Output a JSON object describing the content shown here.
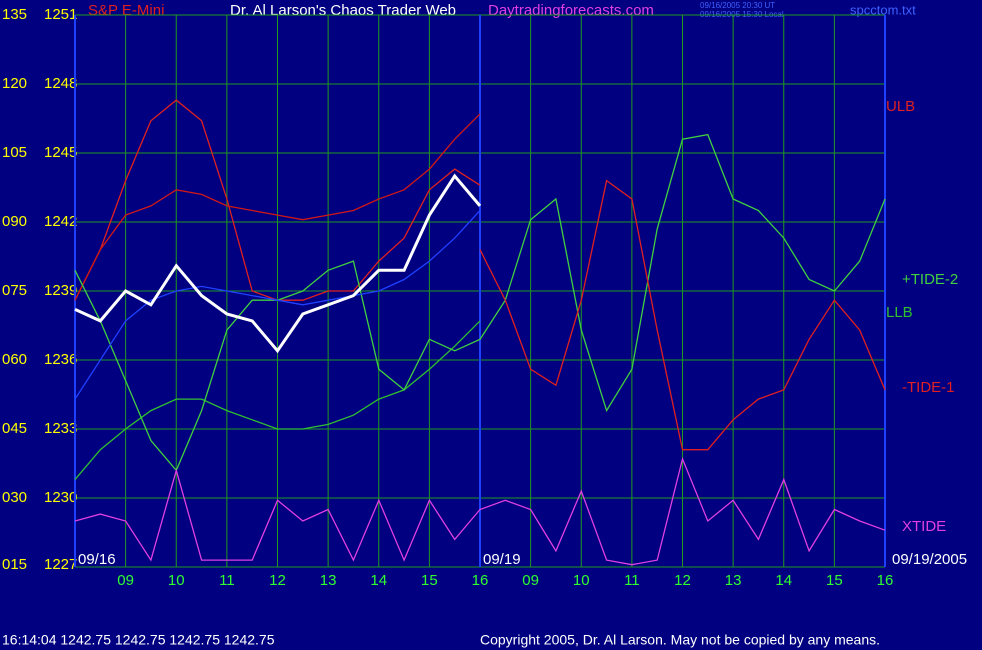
{
  "chart_data": {
    "type": "line",
    "title": "Dr. Al Larson's Chaos Trader Web",
    "symbol": "S&P E-Mini",
    "site": "Daytradingforecasts.com",
    "stamp_ut": "09/16/2005 20:30 UT",
    "stamp_local": "09/16/2005 15:30 Local",
    "file": "spcctom.txt",
    "status": "16:14:04  1242.75 1242.75 1242.75 1242.75",
    "copyright": "Copyright 2005, Dr. Al Larson. May not be copied by any means.",
    "annotations": [
      "09/16",
      "09/19",
      "09/19/2005"
    ],
    "x": [
      0,
      0.5,
      1,
      1.5,
      2,
      2.5,
      3,
      3.5,
      4,
      4.5,
      5,
      5.5,
      6,
      6.5,
      7,
      7.5,
      8,
      8.5,
      9,
      9.5,
      10,
      10.5,
      11,
      11.5,
      12,
      12.5,
      13,
      13.5,
      14,
      14.5,
      15,
      15.5,
      16
    ],
    "xlim": [
      0,
      16
    ],
    "xticks": [
      {
        "value": 1,
        "label": "09"
      },
      {
        "value": 2,
        "label": "10"
      },
      {
        "value": 3,
        "label": "11"
      },
      {
        "value": 4,
        "label": "12"
      },
      {
        "value": 5,
        "label": "13"
      },
      {
        "value": 6,
        "label": "14"
      },
      {
        "value": 7,
        "label": "15"
      },
      {
        "value": 8,
        "label": "16"
      },
      {
        "value": 9,
        "label": "09"
      },
      {
        "value": 10,
        "label": "10"
      },
      {
        "value": 11,
        "label": "11"
      },
      {
        "value": 12,
        "label": "12"
      },
      {
        "value": 13,
        "label": "13"
      },
      {
        "value": 14,
        "label": "14"
      },
      {
        "value": 15,
        "label": "15"
      },
      {
        "value": 16,
        "label": "16"
      }
    ],
    "ylim": [
      1227,
      1251
    ],
    "yticks": [
      1227,
      1230,
      1233,
      1236,
      1239,
      1242,
      1245,
      1248,
      1251
    ],
    "y2lim": [
      15,
      135
    ],
    "y2ticks": [
      {
        "value": 15,
        "label": "015"
      },
      {
        "value": 30,
        "label": "030"
      },
      {
        "value": 45,
        "label": "045"
      },
      {
        "value": 60,
        "label": "060"
      },
      {
        "value": 75,
        "label": "075"
      },
      {
        "value": 90,
        "label": "090"
      },
      {
        "value": 105,
        "label": "105"
      },
      {
        "value": 120,
        "label": "120"
      },
      {
        "value": 135,
        "label": "135"
      }
    ],
    "grid": true,
    "series": [
      {
        "name": "ULB",
        "color": "#e02020",
        "values": [
          1238.6,
          1240.8,
          1243.8,
          1246.4,
          1247.3,
          1246.4,
          1243.0,
          1239.0,
          1238.6,
          1238.6,
          1239.0,
          1239.0,
          1240.3,
          1241.3,
          1243.4,
          1244.3,
          1243.6,
          null,
          null,
          null,
          null,
          null,
          null,
          null,
          null,
          null,
          null,
          null,
          null,
          null,
          null,
          null,
          null
        ]
      },
      {
        "color": "#d01818",
        "values": [
          1238.6,
          1240.8,
          1242.3,
          1242.7,
          1243.4,
          1243.2,
          1242.7,
          1242.5,
          1242.3,
          1242.1,
          1242.3,
          1242.5,
          1243.0,
          1243.4,
          1244.3,
          1245.6,
          1246.7,
          null,
          null,
          null,
          null,
          null,
          null,
          null,
          null,
          null,
          null,
          null,
          null,
          null,
          null,
          null,
          null
        ]
      },
      {
        "name": "LLB",
        "color": "#30c030",
        "values": [
          1230.8,
          1232.1,
          1233.0,
          1233.8,
          1234.3,
          1234.3,
          1233.8,
          1233.4,
          1233.0,
          1233.0,
          1233.2,
          1233.6,
          1234.3,
          1234.7,
          1235.6,
          1236.6,
          1237.7,
          null,
          null,
          null,
          null,
          null,
          null,
          null,
          null,
          null,
          null,
          null,
          null,
          null,
          null,
          null,
          null
        ]
      },
      {
        "name": "+TIDE-2",
        "color": "#40d040",
        "values": [
          1239.9,
          1237.7,
          1235.1,
          1232.5,
          1231.2,
          1233.8,
          1237.3,
          1238.6,
          1238.6,
          1239.0,
          1239.9,
          1240.3,
          1235.6,
          1234.7,
          1236.9,
          1236.4,
          1236.9,
          1238.6,
          1242.1,
          1243.0,
          1237.3,
          1233.8,
          1235.6,
          1241.7,
          1245.6,
          1245.8,
          1243.0,
          1242.5,
          1241.3,
          1239.5,
          1239.0,
          1240.3,
          1243.0
        ]
      },
      {
        "name": "-TIDE-1",
        "color": "#e02020",
        "values": [
          null,
          null,
          null,
          null,
          null,
          null,
          null,
          null,
          null,
          null,
          null,
          null,
          null,
          null,
          null,
          null,
          1240.8,
          1238.6,
          1235.6,
          1234.9,
          1238.6,
          1243.8,
          1243.0,
          1237.3,
          1232.1,
          1232.1,
          1233.4,
          1234.3,
          1234.7,
          1236.9,
          1238.6,
          1237.3,
          1234.7
        ]
      },
      {
        "name": "XTIDE",
        "color": "#e040e0",
        "values": [
          1229.0,
          1229.3,
          1229.0,
          1227.3,
          1231.2,
          1227.3,
          1227.3,
          1227.3,
          1229.9,
          1229.0,
          1229.5,
          1227.3,
          1229.9,
          1227.3,
          1229.9,
          1228.2,
          1229.5,
          1229.9,
          1229.5,
          1227.7,
          1230.3,
          1227.3,
          1227.1,
          1227.3,
          1231.7,
          1229.0,
          1229.9,
          1228.2,
          1230.8,
          1227.7,
          1229.5,
          1229.0,
          1228.6
        ]
      },
      {
        "color": "#2040ff",
        "values": [
          1234.3,
          1236.0,
          1237.7,
          1238.6,
          1239.0,
          1239.2,
          1239.0,
          1238.8,
          1238.6,
          1238.4,
          1238.6,
          1238.8,
          1239.0,
          1239.5,
          1240.3,
          1241.3,
          1242.5,
          null,
          null,
          null,
          null,
          null,
          null,
          null,
          null,
          null,
          null,
          null,
          null,
          null,
          null,
          null,
          null
        ]
      },
      {
        "color": "#ffffff",
        "values": [
          1238.2,
          1237.7,
          1239.0,
          1238.4,
          1240.1,
          1238.8,
          1238.0,
          1237.7,
          1236.4,
          1238.0,
          1238.4,
          1238.8,
          1239.9,
          1239.9,
          1242.3,
          1244.0,
          1242.7,
          null,
          null,
          null,
          null,
          null,
          null,
          null,
          null,
          null,
          null,
          null,
          null,
          null,
          null,
          null,
          null
        ]
      }
    ]
  }
}
